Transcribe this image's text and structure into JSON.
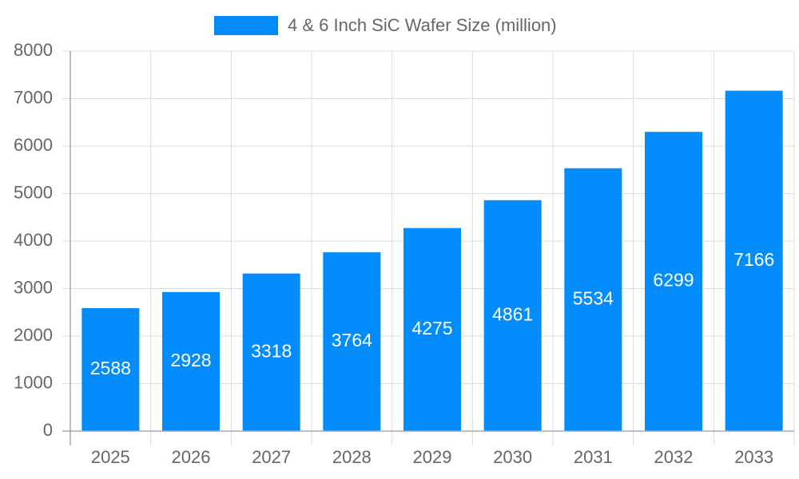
{
  "chart_data": {
    "type": "bar",
    "categories": [
      "2025",
      "2026",
      "2027",
      "2028",
      "2029",
      "2030",
      "2031",
      "2032",
      "2033"
    ],
    "series": [
      {
        "name": "4 & 6 Inch SiC Wafer Size (million)",
        "color": "#038cfc",
        "values": [
          2588,
          2928,
          3318,
          3764,
          4275,
          4861,
          5534,
          6299,
          7166
        ]
      }
    ],
    "ylim": [
      0,
      8000
    ],
    "yticks": [
      0,
      1000,
      2000,
      3000,
      4000,
      5000,
      6000,
      7000,
      8000
    ],
    "grid": true,
    "legend": "top",
    "data_labels": true
  }
}
